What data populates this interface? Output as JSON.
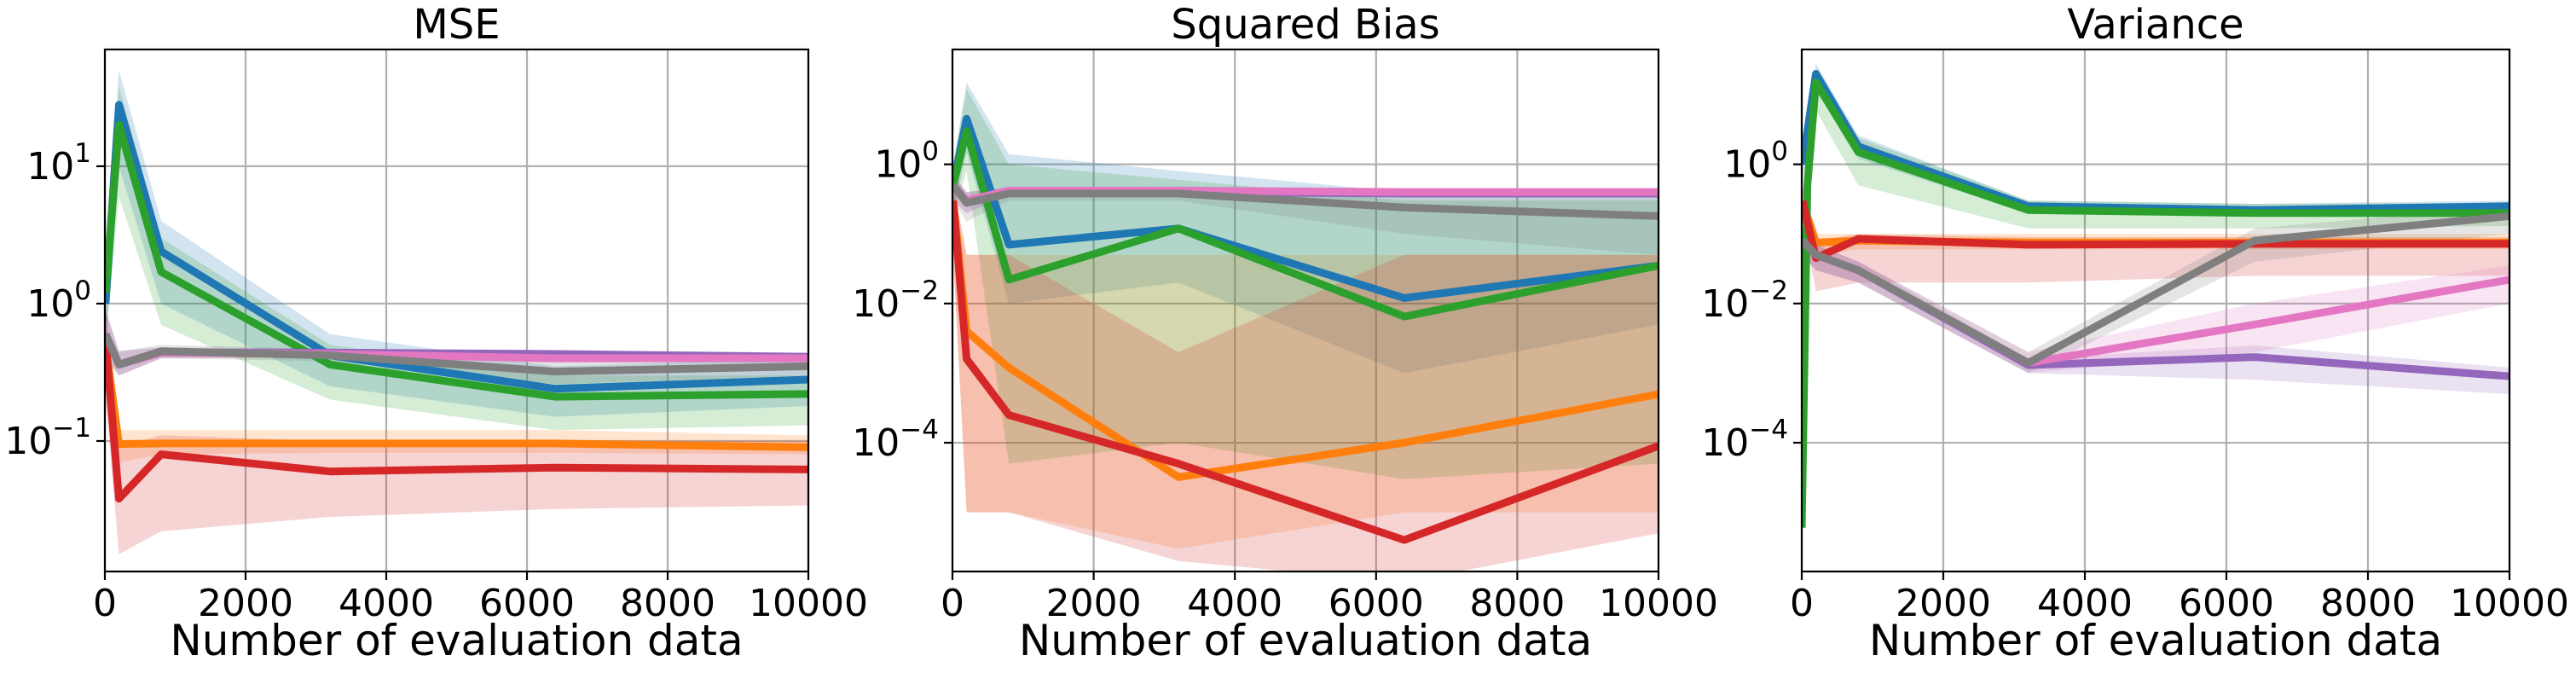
{
  "chart_data": [
    {
      "type": "line",
      "title": "MSE",
      "xlabel": "Number of evaluation data",
      "ylabel": "",
      "yscale": "log",
      "xlim": [
        0,
        10000
      ],
      "ylim_log10": [
        -1.95,
        1.85
      ],
      "x_ticks": [
        "0",
        "2000",
        "4000",
        "6000",
        "8000",
        "10000"
      ],
      "y_ticks": [
        {
          "base": "10",
          "exp": "−1",
          "value": 0.1
        },
        {
          "base": "10",
          "exp": "0",
          "value": 1
        },
        {
          "base": "10",
          "exp": "1",
          "value": 10
        }
      ],
      "grid": true,
      "series": [
        {
          "color": "#1f77b4",
          "x": [
            10,
            200,
            800,
            3200,
            6400,
            10000
          ],
          "y": [
            1.0,
            28,
            2.4,
            0.42,
            0.24,
            0.28
          ],
          "band_low": [
            0.5,
            10,
            1.0,
            0.25,
            0.15,
            0.18
          ],
          "band_high": [
            2.0,
            50,
            4.0,
            0.6,
            0.35,
            0.4
          ]
        },
        {
          "color": "#ff7f0e",
          "x": [
            10,
            200,
            800,
            3200,
            6400,
            10000
          ],
          "y": [
            0.5,
            0.095,
            0.096,
            0.096,
            0.096,
            0.09
          ],
          "band_low": [
            0.3,
            0.07,
            0.08,
            0.082,
            0.082,
            0.08
          ],
          "band_high": [
            0.9,
            0.12,
            0.12,
            0.12,
            0.12,
            0.11
          ]
        },
        {
          "color": "#2ca02c",
          "x": [
            10,
            200,
            800,
            3200,
            6400,
            10000
          ],
          "y": [
            1.2,
            20,
            1.7,
            0.36,
            0.21,
            0.22
          ],
          "band_low": [
            0.5,
            6,
            0.7,
            0.2,
            0.12,
            0.13
          ],
          "band_high": [
            2.5,
            38,
            3.0,
            0.5,
            0.3,
            0.3
          ]
        },
        {
          "color": "#d62728",
          "x": [
            10,
            200,
            800,
            3200,
            6400,
            10000
          ],
          "y": [
            0.55,
            0.038,
            0.08,
            0.06,
            0.064,
            0.062
          ],
          "band_low": [
            0.2,
            0.015,
            0.022,
            0.028,
            0.032,
            0.034
          ],
          "band_high": [
            1.0,
            0.09,
            0.11,
            0.1,
            0.1,
            0.1
          ]
        },
        {
          "color": "#9467bd",
          "x": [
            10,
            200,
            800,
            3200,
            6400,
            10000
          ],
          "y": [
            0.6,
            0.36,
            0.44,
            0.44,
            0.43,
            0.41
          ],
          "band_low": [
            0.4,
            0.3,
            0.4,
            0.41,
            0.4,
            0.39
          ],
          "band_high": [
            0.9,
            0.45,
            0.48,
            0.47,
            0.46,
            0.44
          ]
        },
        {
          "color": "#e377c2",
          "x": [
            10,
            200,
            800,
            3200,
            6400,
            10000
          ],
          "y": [
            0.6,
            0.36,
            0.44,
            0.43,
            0.4,
            0.4
          ],
          "band_low": [
            0.4,
            0.3,
            0.4,
            0.4,
            0.37,
            0.37
          ],
          "band_high": [
            0.9,
            0.45,
            0.48,
            0.46,
            0.44,
            0.43
          ]
        },
        {
          "color": "#7f7f7f",
          "x": [
            10,
            200,
            800,
            3200,
            6400,
            10000
          ],
          "y": [
            0.6,
            0.36,
            0.45,
            0.42,
            0.32,
            0.35
          ],
          "band_low": [
            0.4,
            0.3,
            0.4,
            0.38,
            0.26,
            0.3
          ],
          "band_high": [
            0.9,
            0.45,
            0.5,
            0.47,
            0.38,
            0.4
          ]
        }
      ]
    },
    {
      "type": "line",
      "title": "Squared Bias",
      "xlabel": "Number of evaluation data",
      "ylabel": "",
      "yscale": "log",
      "xlim": [
        0,
        10000
      ],
      "ylim_log10": [
        -5.85,
        1.65
      ],
      "x_ticks": [
        "0",
        "2000",
        "4000",
        "6000",
        "8000",
        "10000"
      ],
      "y_ticks": [
        {
          "base": "10",
          "exp": "−4",
          "value": 0.0001
        },
        {
          "base": "10",
          "exp": "−2",
          "value": 0.01
        },
        {
          "base": "10",
          "exp": "0",
          "value": 1
        }
      ],
      "grid": true,
      "series": [
        {
          "color": "#1f77b4",
          "x": [
            10,
            200,
            800,
            3200,
            6400,
            10000
          ],
          "y": [
            0.5,
            4.5,
            0.07,
            0.12,
            0.012,
            0.035
          ],
          "band_low": [
            0.2,
            1.5,
            0.01,
            0.02,
            0.001,
            0.005
          ],
          "band_high": [
            1.0,
            15,
            1.4,
            0.8,
            0.4,
            0.4
          ]
        },
        {
          "color": "#ff7f0e",
          "x": [
            10,
            200,
            800,
            3200,
            6400,
            10000
          ],
          "y": [
            0.3,
            0.004,
            0.0012,
            3.2e-05,
            0.0001,
            0.0005
          ],
          "band_low": [
            0.05,
            1e-05,
            1e-05,
            3e-06,
            1e-05,
            1e-05
          ],
          "band_high": [
            0.5,
            0.05,
            0.05,
            0.05,
            0.05,
            0.05
          ]
        },
        {
          "color": "#2ca02c",
          "x": [
            10,
            200,
            800,
            3200,
            6400,
            10000
          ],
          "y": [
            0.5,
            3.0,
            0.022,
            0.12,
            0.0065,
            0.035
          ],
          "band_low": [
            0.2,
            0.8,
            5e-05,
            0.0001,
            3e-05,
            5e-05
          ],
          "band_high": [
            1.0,
            12,
            1.0,
            0.6,
            0.3,
            0.3
          ]
        },
        {
          "color": "#d62728",
          "x": [
            10,
            200,
            800,
            3200,
            6400,
            10000
          ],
          "y": [
            0.3,
            0.0016,
            0.00025,
            5e-05,
            4e-06,
            9e-05
          ],
          "band_low": [
            0.05,
            1e-05,
            1e-05,
            2e-06,
            1e-06,
            5e-06
          ],
          "band_high": [
            0.5,
            0.05,
            0.05,
            0.002,
            0.05,
            0.05
          ]
        },
        {
          "color": "#9467bd",
          "x": [
            10,
            200,
            800,
            3200,
            6400,
            10000
          ],
          "y": [
            0.5,
            0.3,
            0.4,
            0.4,
            0.38,
            0.38
          ],
          "band_low": [
            0.3,
            0.2,
            0.35,
            0.35,
            0.33,
            0.33
          ],
          "band_high": [
            0.7,
            0.4,
            0.45,
            0.45,
            0.43,
            0.43
          ]
        },
        {
          "color": "#e377c2",
          "x": [
            10,
            200,
            800,
            3200,
            6400,
            10000
          ],
          "y": [
            0.5,
            0.3,
            0.42,
            0.42,
            0.4,
            0.4
          ],
          "band_low": [
            0.3,
            0.2,
            0.37,
            0.37,
            0.35,
            0.35
          ],
          "band_high": [
            0.7,
            0.4,
            0.47,
            0.47,
            0.45,
            0.45
          ]
        },
        {
          "color": "#7f7f7f",
          "x": [
            10,
            200,
            800,
            3200,
            6400,
            10000
          ],
          "y": [
            0.5,
            0.28,
            0.38,
            0.38,
            0.24,
            0.18
          ],
          "band_low": [
            0.3,
            0.15,
            0.3,
            0.3,
            0.1,
            0.05
          ],
          "band_high": [
            0.7,
            0.4,
            0.45,
            0.45,
            0.38,
            0.35
          ]
        }
      ]
    },
    {
      "type": "line",
      "title": "Variance",
      "xlabel": "Number of evaluation data",
      "ylabel": "",
      "yscale": "log",
      "xlim": [
        0,
        10000
      ],
      "ylim_log10": [
        -5.85,
        1.65
      ],
      "x_ticks": [
        "0",
        "2000",
        "4000",
        "6000",
        "8000",
        "10000"
      ],
      "y_ticks": [
        {
          "base": "10",
          "exp": "−4",
          "value": 0.0001
        },
        {
          "base": "10",
          "exp": "−2",
          "value": 0.01
        },
        {
          "base": "10",
          "exp": "0",
          "value": 1
        }
      ],
      "grid": true,
      "series": [
        {
          "color": "#1f77b4",
          "x": [
            10,
            200,
            800,
            3200,
            6400,
            10000
          ],
          "y": [
            1.0,
            20,
            1.8,
            0.25,
            0.22,
            0.25
          ],
          "band_low": [
            0.5,
            12,
            1.2,
            0.2,
            0.18,
            0.2
          ],
          "band_high": [
            2.0,
            28,
            2.6,
            0.3,
            0.27,
            0.3
          ]
        },
        {
          "color": "#ff7f0e",
          "x": [
            10,
            200,
            800,
            3200,
            6400,
            10000
          ],
          "y": [
            0.3,
            0.075,
            0.08,
            0.075,
            0.075,
            0.075
          ],
          "band_low": [
            0.15,
            0.05,
            0.06,
            0.06,
            0.06,
            0.06
          ],
          "band_high": [
            0.5,
            0.1,
            0.1,
            0.1,
            0.1,
            0.1
          ]
        },
        {
          "color": "#2ca02c",
          "x": [
            0,
            80,
            200,
            800,
            3200,
            6400,
            10000
          ],
          "y": [
            6e-06,
            0.5,
            15,
            1.5,
            0.22,
            0.2,
            0.2
          ],
          "band_low": [
            3e-06,
            0.2,
            6,
            0.5,
            0.12,
            0.12,
            0.13
          ],
          "band_high": [
            1e-05,
            1.0,
            22,
            2.4,
            0.3,
            0.27,
            0.28
          ]
        },
        {
          "color": "#d62728",
          "x": [
            10,
            200,
            800,
            3200,
            6400,
            10000
          ],
          "y": [
            0.3,
            0.045,
            0.085,
            0.07,
            0.072,
            0.072
          ],
          "band_low": [
            0.15,
            0.015,
            0.02,
            0.02,
            0.025,
            0.025
          ],
          "band_high": [
            0.5,
            0.08,
            0.1,
            0.09,
            0.09,
            0.09
          ]
        },
        {
          "color": "#9467bd",
          "x": [
            10,
            200,
            800,
            3200,
            6400,
            10000
          ],
          "y": [
            0.08,
            0.05,
            0.03,
            0.0013,
            0.0017,
            0.0009
          ],
          "band_low": [
            0.05,
            0.03,
            0.02,
            0.001,
            0.0008,
            0.0005
          ],
          "band_high": [
            0.12,
            0.07,
            0.04,
            0.0016,
            0.0025,
            0.0012
          ]
        },
        {
          "color": "#e377c2",
          "x": [
            10,
            200,
            800,
            3200,
            6400,
            10000
          ],
          "y": [
            0.08,
            0.05,
            0.03,
            0.0014,
            0.005,
            0.022
          ],
          "band_low": [
            0.05,
            0.03,
            0.02,
            0.001,
            0.002,
            0.01
          ],
          "band_high": [
            0.12,
            0.07,
            0.04,
            0.002,
            0.01,
            0.035
          ]
        },
        {
          "color": "#7f7f7f",
          "x": [
            10,
            200,
            800,
            3200,
            6400,
            10000
          ],
          "y": [
            0.08,
            0.05,
            0.03,
            0.0014,
            0.08,
            0.18
          ],
          "band_low": [
            0.05,
            0.03,
            0.02,
            0.001,
            0.04,
            0.1
          ],
          "band_high": [
            0.12,
            0.07,
            0.04,
            0.002,
            0.12,
            0.25
          ]
        },
        {
          "color": "#8c564b",
          "x": [
            200,
            230
          ],
          "y": [
            1e-06,
            1e-06
          ],
          "band_low": [
            1e-06,
            1e-06
          ],
          "band_high": [
            1e-06,
            1e-06
          ]
        }
      ]
    }
  ]
}
